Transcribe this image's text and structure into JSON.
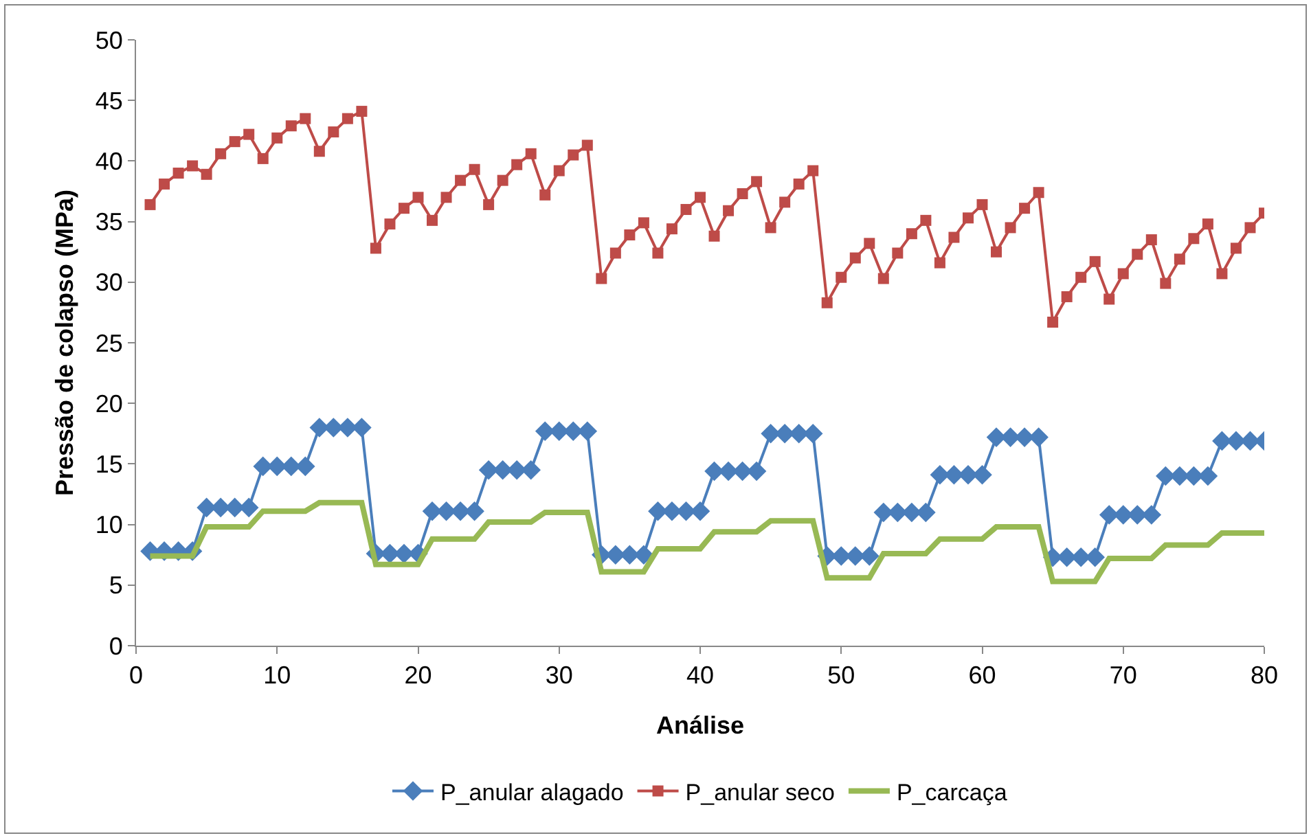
{
  "chart_data": {
    "type": "line",
    "xlabel": "Análise",
    "ylabel": "Pressão de colapso (MPa)",
    "xlim": [
      0,
      80
    ],
    "xticks": [
      0,
      10,
      20,
      30,
      40,
      50,
      60,
      70,
      80
    ],
    "ylim": [
      0,
      50
    ],
    "yticks": [
      0,
      5,
      10,
      15,
      20,
      25,
      30,
      35,
      40,
      45,
      50
    ],
    "grid": false,
    "legend": "bottom",
    "x": [
      1,
      2,
      3,
      4,
      5,
      6,
      7,
      8,
      9,
      10,
      11,
      12,
      13,
      14,
      15,
      16,
      17,
      18,
      19,
      20,
      21,
      22,
      23,
      24,
      25,
      26,
      27,
      28,
      29,
      30,
      31,
      32,
      33,
      34,
      35,
      36,
      37,
      38,
      39,
      40,
      41,
      42,
      43,
      44,
      45,
      46,
      47,
      48,
      49,
      50,
      51,
      52,
      53,
      54,
      55,
      56,
      57,
      58,
      59,
      60,
      61,
      62,
      63,
      64,
      65,
      66,
      67,
      68,
      69,
      70,
      71,
      72,
      73,
      74,
      75,
      76,
      77,
      78,
      79,
      80
    ],
    "series": [
      {
        "name": "P_anular alagado",
        "color": "#4a7ebb",
        "marker": "diamond",
        "values": [
          7.8,
          7.8,
          7.8,
          7.8,
          11.4,
          11.4,
          11.4,
          11.4,
          14.8,
          14.8,
          14.8,
          14.8,
          18.0,
          18.0,
          18.0,
          18.0,
          7.6,
          7.6,
          7.6,
          7.6,
          11.1,
          11.1,
          11.1,
          11.1,
          14.5,
          14.5,
          14.5,
          14.5,
          17.7,
          17.7,
          17.7,
          17.7,
          7.5,
          7.5,
          7.5,
          7.5,
          11.1,
          11.1,
          11.1,
          11.1,
          14.4,
          14.4,
          14.4,
          14.4,
          17.5,
          17.5,
          17.5,
          17.5,
          7.4,
          7.4,
          7.4,
          7.4,
          11.0,
          11.0,
          11.0,
          11.0,
          14.1,
          14.1,
          14.1,
          14.1,
          17.2,
          17.2,
          17.2,
          17.2,
          7.3,
          7.3,
          7.3,
          7.3,
          10.8,
          10.8,
          10.8,
          10.8,
          14.0,
          14.0,
          14.0,
          14.0,
          16.9,
          16.9,
          16.9,
          16.9
        ]
      },
      {
        "name": "P_anular seco",
        "color": "#be4b48",
        "marker": "square",
        "values": [
          36.4,
          38.1,
          39.0,
          39.6,
          38.9,
          40.6,
          41.6,
          42.2,
          40.2,
          41.9,
          42.9,
          43.5,
          40.8,
          42.4,
          43.5,
          44.1,
          32.8,
          34.8,
          36.1,
          37.0,
          35.1,
          37.0,
          38.4,
          39.3,
          36.4,
          38.4,
          39.7,
          40.6,
          37.2,
          39.2,
          40.5,
          41.3,
          30.3,
          32.4,
          33.9,
          34.9,
          32.4,
          34.4,
          36.0,
          37.0,
          33.8,
          35.9,
          37.3,
          38.3,
          34.5,
          36.6,
          38.1,
          39.2,
          28.3,
          30.4,
          32.0,
          33.2,
          30.3,
          32.4,
          34.0,
          35.1,
          31.6,
          33.7,
          35.3,
          36.4,
          32.5,
          34.5,
          36.1,
          37.4,
          26.7,
          28.8,
          30.4,
          31.7,
          28.6,
          30.7,
          32.3,
          33.5,
          29.9,
          31.9,
          33.6,
          34.8,
          30.7,
          32.8,
          34.5,
          35.7
        ]
      },
      {
        "name": "P_carcaça",
        "color": "#98b954",
        "marker": "none",
        "values": [
          7.4,
          7.4,
          7.4,
          7.4,
          9.8,
          9.8,
          9.8,
          9.8,
          11.1,
          11.1,
          11.1,
          11.1,
          11.8,
          11.8,
          11.8,
          11.8,
          6.7,
          6.7,
          6.7,
          6.7,
          8.8,
          8.8,
          8.8,
          8.8,
          10.2,
          10.2,
          10.2,
          10.2,
          11.0,
          11.0,
          11.0,
          11.0,
          6.1,
          6.1,
          6.1,
          6.1,
          8.0,
          8.0,
          8.0,
          8.0,
          9.4,
          9.4,
          9.4,
          9.4,
          10.3,
          10.3,
          10.3,
          10.3,
          5.6,
          5.6,
          5.6,
          5.6,
          7.6,
          7.6,
          7.6,
          7.6,
          8.8,
          8.8,
          8.8,
          8.8,
          9.8,
          9.8,
          9.8,
          9.8,
          5.3,
          5.3,
          5.3,
          5.3,
          7.2,
          7.2,
          7.2,
          7.2,
          8.3,
          8.3,
          8.3,
          8.3,
          9.3,
          9.3,
          9.3,
          9.3
        ]
      }
    ]
  }
}
